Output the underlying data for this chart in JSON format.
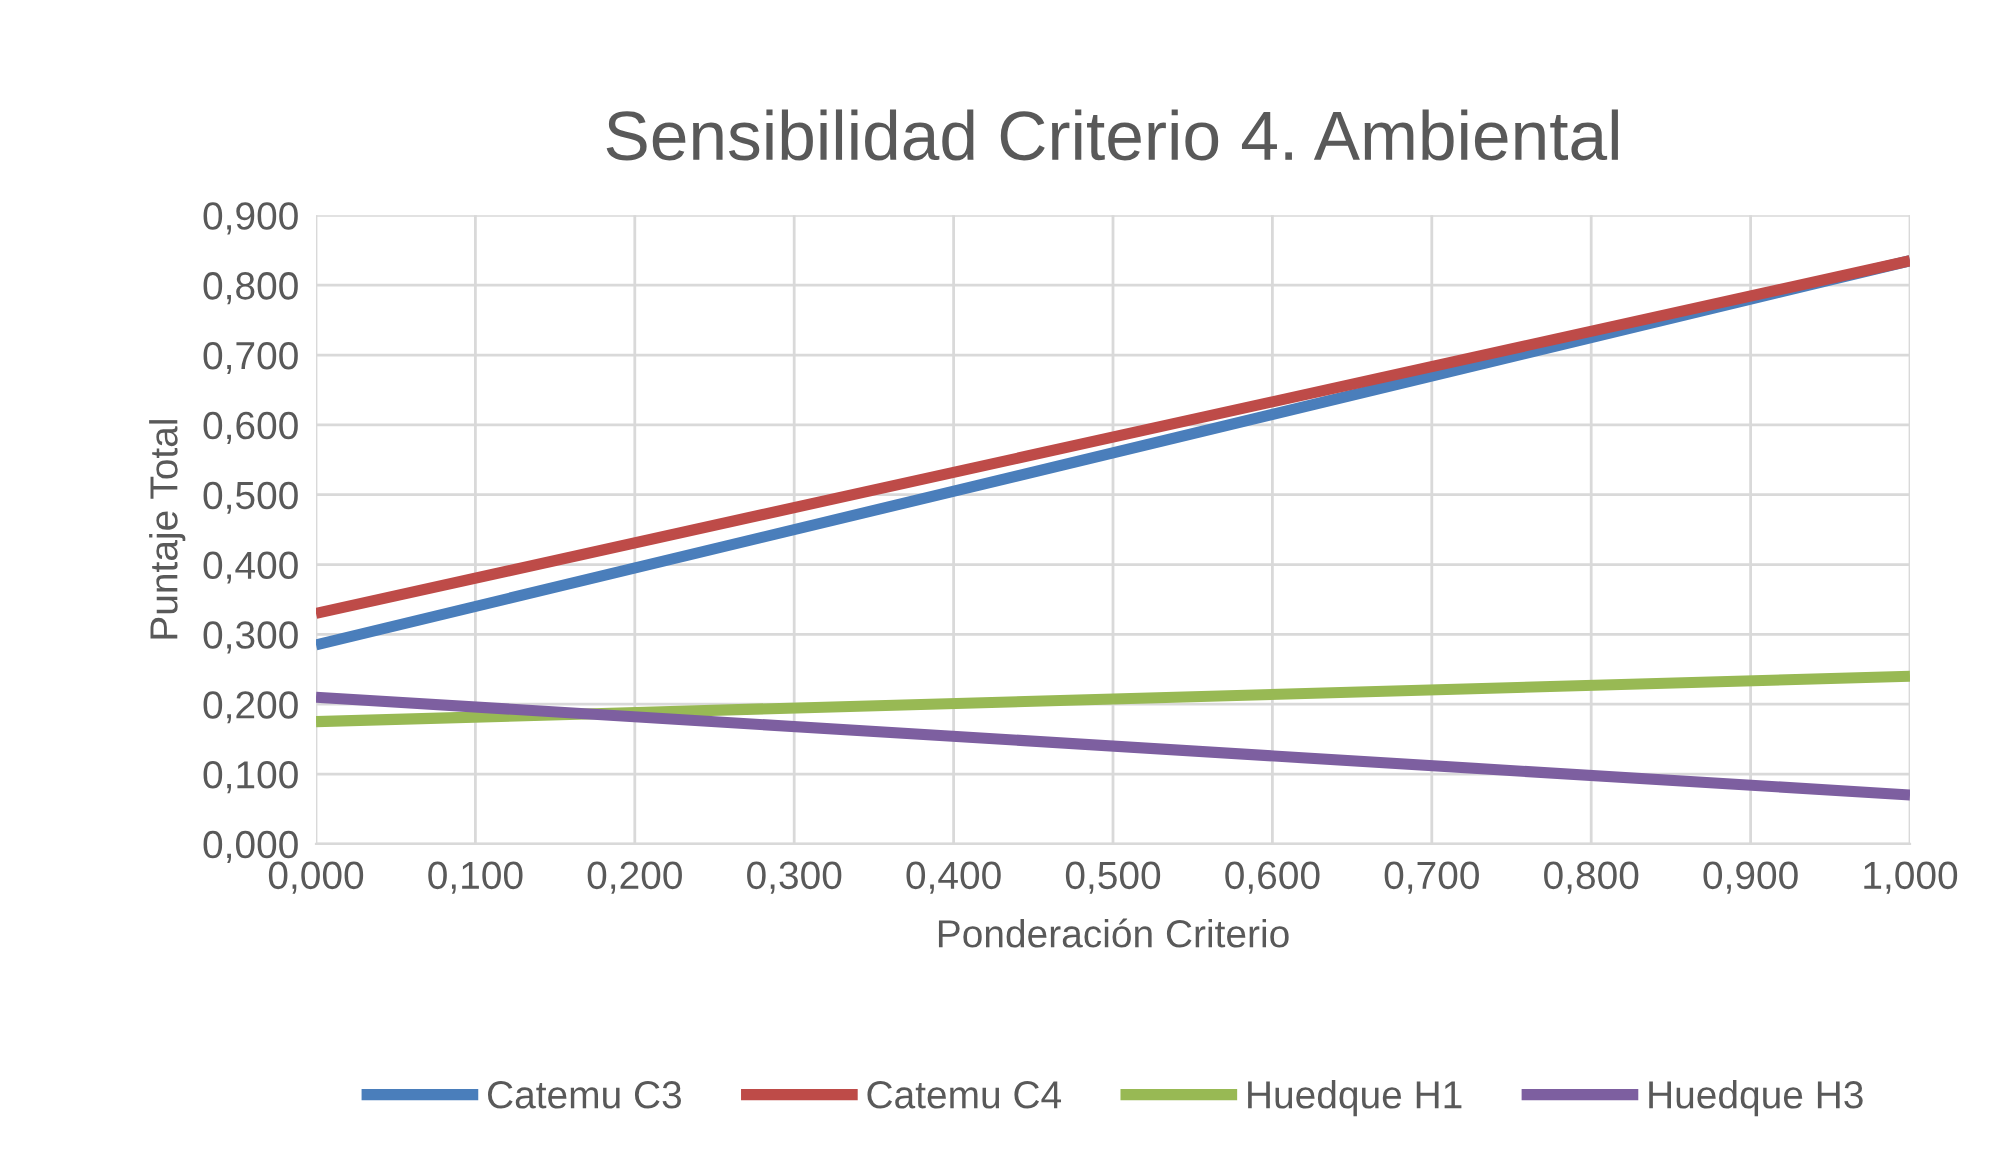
{
  "chart_data": {
    "type": "line",
    "title": "Sensibilidad Criterio 4. Ambiental",
    "xlabel": "Ponderación Criterio",
    "ylabel": "Puntaje Total",
    "x": [
      0,
      1
    ],
    "series": [
      {
        "name": "Catemu C3",
        "color": "#4a7ebb",
        "values": [
          0.285,
          0.835
        ]
      },
      {
        "name": "Catemu C4",
        "color": "#be4b48",
        "values": [
          0.33,
          0.835
        ]
      },
      {
        "name": "Huedque H1",
        "color": "#98b954",
        "values": [
          0.175,
          0.24
        ]
      },
      {
        "name": "Huedque H3",
        "color": "#7d5fa0",
        "values": [
          0.21,
          0.07
        ]
      }
    ],
    "xlim": [
      0,
      1
    ],
    "ylim": [
      0,
      0.9
    ],
    "xticks": [
      {
        "value": 0,
        "label": "0,000"
      },
      {
        "value": 0.1,
        "label": "0,100"
      },
      {
        "value": 0.2,
        "label": "0,200"
      },
      {
        "value": 0.3,
        "label": "0,300"
      },
      {
        "value": 0.4,
        "label": "0,400"
      },
      {
        "value": 0.5,
        "label": "0,500"
      },
      {
        "value": 0.6,
        "label": "0,600"
      },
      {
        "value": 0.7,
        "label": "0,700"
      },
      {
        "value": 0.8,
        "label": "0,800"
      },
      {
        "value": 0.9,
        "label": "0,900"
      },
      {
        "value": 1,
        "label": "1,000"
      }
    ],
    "yticks": [
      {
        "value": 0,
        "label": "0,000"
      },
      {
        "value": 0.1,
        "label": "0,100"
      },
      {
        "value": 0.2,
        "label": "0,200"
      },
      {
        "value": 0.3,
        "label": "0,300"
      },
      {
        "value": 0.4,
        "label": "0,400"
      },
      {
        "value": 0.5,
        "label": "0,500"
      },
      {
        "value": 0.6,
        "label": "0,600"
      },
      {
        "value": 0.7,
        "label": "0,700"
      },
      {
        "value": 0.8,
        "label": "0,800"
      },
      {
        "value": 0.9,
        "label": "0,900"
      }
    ],
    "grid": true,
    "legend": "bottom",
    "marker": "none",
    "line_style": "solid"
  }
}
